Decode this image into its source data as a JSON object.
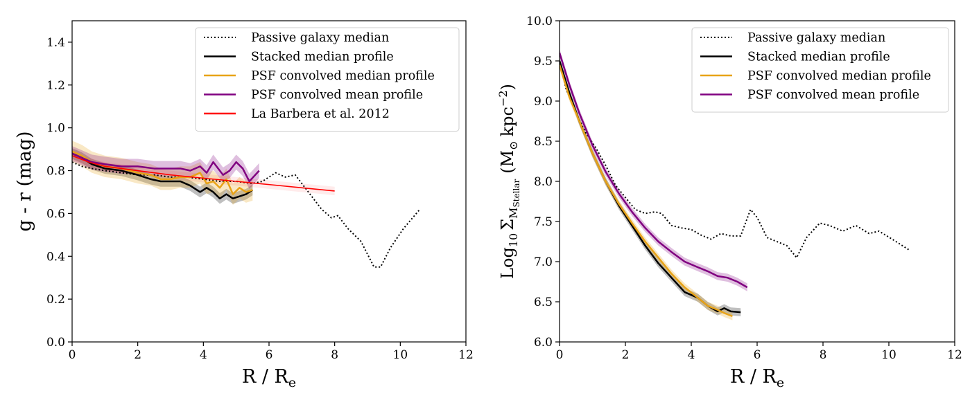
{
  "chart_data": [
    {
      "type": "line",
      "xlabel": {
        "main": "R / R",
        "sub": "e"
      },
      "ylabel": "g - r (mag)",
      "xlim": [
        0,
        12
      ],
      "ylim": [
        0,
        1.5
      ],
      "xticks": [
        0,
        2,
        4,
        6,
        8,
        10,
        12
      ],
      "yticks": [
        0.0,
        0.2,
        0.4,
        0.6,
        0.8,
        1.0,
        1.2,
        1.4
      ],
      "xtick_labels": [
        "0",
        "2",
        "4",
        "6",
        "8",
        "10",
        "12"
      ],
      "ytick_labels": [
        "0.0",
        "0.2",
        "0.4",
        "0.6",
        "0.8",
        "1.0",
        "1.2",
        "1.4"
      ],
      "grid": false,
      "legend_position": "top-right",
      "series": [
        {
          "name": "Passive galaxy median",
          "style": "dotted",
          "color": "#000000",
          "x": [
            0,
            0.3,
            0.6,
            1.0,
            1.5,
            2.0,
            2.5,
            3.0,
            3.5,
            4.0,
            4.5,
            5.0,
            5.5,
            5.8,
            6.2,
            6.5,
            6.8,
            7.2,
            7.6,
            7.9,
            8.1,
            8.4,
            8.8,
            9.2,
            9.4,
            9.7,
            10.1,
            10.6
          ],
          "y": [
            0.84,
            0.82,
            0.81,
            0.8,
            0.79,
            0.78,
            0.78,
            0.77,
            0.77,
            0.76,
            0.75,
            0.75,
            0.74,
            0.75,
            0.79,
            0.77,
            0.78,
            0.7,
            0.62,
            0.58,
            0.59,
            0.53,
            0.47,
            0.35,
            0.35,
            0.44,
            0.53,
            0.62
          ]
        },
        {
          "name": "Stacked median profile",
          "style": "solid",
          "color": "#000000",
          "x": [
            0,
            0.3,
            0.6,
            1.0,
            1.5,
            2.0,
            2.4,
            2.7,
            3.0,
            3.3,
            3.6,
            3.9,
            4.1,
            4.3,
            4.5,
            4.7,
            4.9,
            5.1,
            5.3,
            5.5
          ],
          "y": [
            0.88,
            0.86,
            0.83,
            0.81,
            0.8,
            0.78,
            0.76,
            0.75,
            0.75,
            0.75,
            0.73,
            0.7,
            0.72,
            0.7,
            0.67,
            0.69,
            0.67,
            0.68,
            0.69,
            0.71
          ],
          "band": 0.025
        },
        {
          "name": "PSF convolved median profile",
          "style": "solid",
          "color": "#e8a317",
          "x": [
            0,
            0.3,
            0.6,
            1.0,
            1.5,
            2.0,
            2.4,
            2.7,
            3.0,
            3.3,
            3.6,
            3.9,
            4.1,
            4.3,
            4.5,
            4.7,
            4.9,
            5.1,
            5.3,
            5.5
          ],
          "y": [
            0.89,
            0.87,
            0.84,
            0.82,
            0.81,
            0.79,
            0.78,
            0.76,
            0.76,
            0.77,
            0.77,
            0.79,
            0.74,
            0.75,
            0.72,
            0.76,
            0.69,
            0.72,
            0.7,
            0.71
          ],
          "band": 0.05
        },
        {
          "name": "PSF convolved mean profile",
          "style": "solid",
          "color": "#800080",
          "x": [
            0,
            0.3,
            0.6,
            1.0,
            1.5,
            2.0,
            2.5,
            3.0,
            3.3,
            3.6,
            3.9,
            4.1,
            4.3,
            4.6,
            4.8,
            5.0,
            5.2,
            5.4,
            5.7
          ],
          "y": [
            0.88,
            0.86,
            0.84,
            0.83,
            0.82,
            0.82,
            0.81,
            0.81,
            0.81,
            0.8,
            0.82,
            0.79,
            0.84,
            0.78,
            0.8,
            0.84,
            0.81,
            0.75,
            0.8
          ],
          "band": 0.035
        },
        {
          "name": "La Barbera et al. 2012",
          "style": "solid",
          "color": "#ff0000",
          "x": [
            0,
            0.5,
            1,
            2,
            3,
            4,
            5,
            6,
            7,
            8
          ],
          "y": [
            0.87,
            0.84,
            0.82,
            0.8,
            0.78,
            0.765,
            0.75,
            0.735,
            0.72,
            0.705
          ],
          "band": 0.02
        }
      ]
    },
    {
      "type": "line",
      "xlabel": {
        "main": "R / R",
        "sub": "e"
      },
      "ylabel": {
        "main": "Log",
        "sub1": "10",
        "sigma": "Σ",
        "sub2": "M",
        "sub3": "Stellar",
        "unit": "(M",
        "unit_sub": "⊙",
        "unit_rest": "kpc",
        "unit_sup": "−2",
        "close": ")"
      },
      "xlim": [
        0,
        12
      ],
      "ylim": [
        6.0,
        10.0
      ],
      "xticks": [
        0,
        2,
        4,
        6,
        8,
        10,
        12
      ],
      "yticks": [
        6.0,
        6.5,
        7.0,
        7.5,
        8.0,
        8.5,
        9.0,
        9.5,
        10.0
      ],
      "xtick_labels": [
        "0",
        "2",
        "4",
        "6",
        "8",
        "10",
        "12"
      ],
      "ytick_labels": [
        "6.0",
        "6.5",
        "7.0",
        "7.5",
        "8.0",
        "8.5",
        "9.0",
        "9.5",
        "10.0"
      ],
      "grid": false,
      "legend_position": "top-right",
      "series": [
        {
          "name": "Passive galaxy median",
          "style": "dotted",
          "color": "#000000",
          "x": [
            0,
            0.2,
            0.5,
            0.8,
            1.1,
            1.4,
            1.7,
            2.0,
            2.3,
            2.6,
            2.9,
            3.1,
            3.4,
            3.7,
            4.0,
            4.3,
            4.6,
            4.9,
            5.2,
            5.5,
            5.8,
            6.0,
            6.3,
            6.6,
            6.9,
            7.2,
            7.5,
            7.9,
            8.2,
            8.6,
            9.0,
            9.4,
            9.7,
            10.1,
            10.6
          ],
          "y": [
            9.5,
            9.15,
            8.85,
            8.6,
            8.42,
            8.2,
            7.95,
            7.8,
            7.65,
            7.6,
            7.62,
            7.6,
            7.45,
            7.42,
            7.4,
            7.33,
            7.28,
            7.35,
            7.32,
            7.32,
            7.65,
            7.55,
            7.3,
            7.25,
            7.2,
            7.05,
            7.3,
            7.48,
            7.45,
            7.38,
            7.45,
            7.35,
            7.38,
            7.28,
            7.15
          ]
        },
        {
          "name": "Stacked median profile",
          "style": "solid",
          "color": "#000000",
          "x": [
            0,
            0.3,
            0.6,
            1.0,
            1.4,
            1.8,
            2.2,
            2.6,
            3.0,
            3.4,
            3.8,
            4.2,
            4.5,
            4.8,
            5.0,
            5.2,
            5.5
          ],
          "y": [
            9.5,
            9.1,
            8.75,
            8.35,
            8.0,
            7.7,
            7.45,
            7.2,
            6.98,
            6.8,
            6.62,
            6.55,
            6.45,
            6.38,
            6.42,
            6.38,
            6.37
          ],
          "band": 0.05
        },
        {
          "name": "PSF convolved median profile",
          "style": "solid",
          "color": "#e8a317",
          "x": [
            0,
            0.3,
            0.6,
            1.0,
            1.4,
            1.8,
            2.2,
            2.6,
            3.0,
            3.4,
            3.8,
            4.2,
            4.5,
            4.8,
            5.0,
            5.25
          ],
          "y": [
            9.45,
            9.05,
            8.75,
            8.35,
            8.0,
            7.72,
            7.48,
            7.25,
            7.05,
            6.85,
            6.68,
            6.55,
            6.45,
            6.4,
            6.36,
            6.32
          ],
          "band": 0.05
        },
        {
          "name": "PSF convolved mean profile",
          "style": "solid",
          "color": "#800080",
          "x": [
            0,
            0.3,
            0.6,
            1.0,
            1.4,
            1.8,
            2.2,
            2.6,
            3.0,
            3.4,
            3.8,
            4.2,
            4.5,
            4.8,
            5.1,
            5.4,
            5.7
          ],
          "y": [
            9.6,
            9.2,
            8.85,
            8.45,
            8.12,
            7.85,
            7.62,
            7.42,
            7.25,
            7.12,
            7.0,
            6.93,
            6.88,
            6.82,
            6.8,
            6.75,
            6.68
          ],
          "band": 0.05
        }
      ]
    }
  ]
}
